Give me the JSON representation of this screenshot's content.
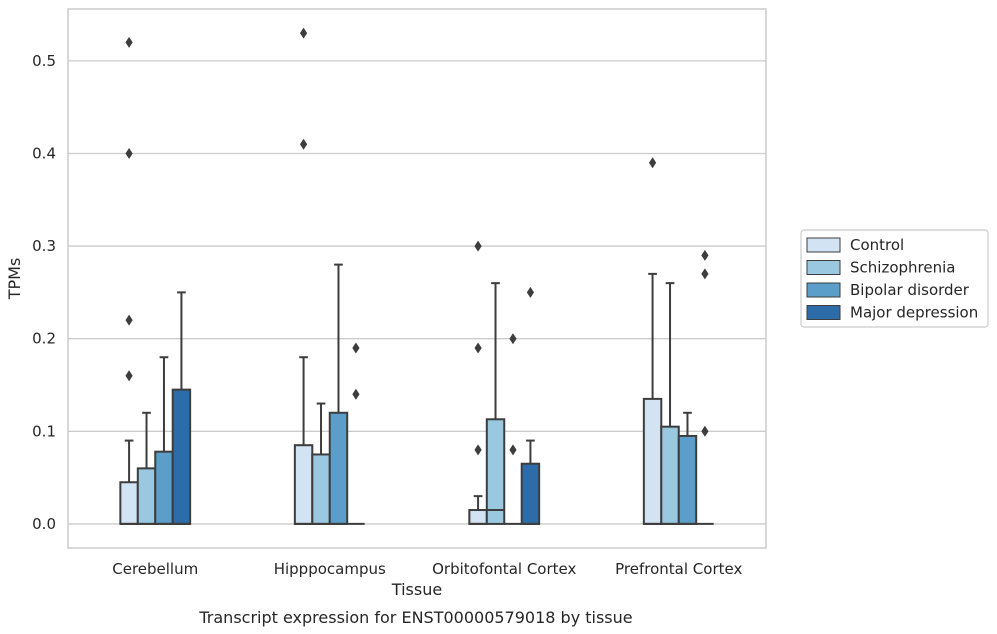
{
  "chart_data": {
    "type": "box",
    "caption": "Transcript expression for ENST00000579018 by tissue",
    "xlabel": "Tissue",
    "ylabel": "TPMs",
    "ylim": [
      -0.026,
      0.556
    ],
    "yticks": [
      0.0,
      0.1,
      0.2,
      0.3,
      0.4,
      0.5
    ],
    "ytick_labels": [
      "0.0",
      "0.1",
      "0.2",
      "0.3",
      "0.4",
      "0.5"
    ],
    "grid": true,
    "legend_position": "right",
    "categories": [
      "Cerebellum",
      "Hipppocampus",
      "Orbitofontal Cortex",
      "Prefrontal Cortex"
    ],
    "series": [
      {
        "name": "Control",
        "color": "#d2e3f3",
        "boxes": [
          {
            "q1": 0.0,
            "median": 0.0,
            "q3": 0.045,
            "whisker_low": 0.0,
            "whisker_high": 0.09,
            "outliers": [
              0.16,
              0.22,
              0.4,
              0.52
            ]
          },
          {
            "q1": 0.0,
            "median": 0.0,
            "q3": 0.085,
            "whisker_low": 0.0,
            "whisker_high": 0.18,
            "outliers": [
              0.41,
              0.53
            ]
          },
          {
            "q1": 0.0,
            "median": 0.0,
            "q3": 0.015,
            "whisker_low": 0.0,
            "whisker_high": 0.03,
            "outliers": [
              0.08,
              0.19,
              0.3
            ]
          },
          {
            "q1": 0.0,
            "median": 0.0,
            "q3": 0.135,
            "whisker_low": 0.0,
            "whisker_high": 0.27,
            "outliers": [
              0.39
            ]
          }
        ]
      },
      {
        "name": "Schizophrenia",
        "color": "#9ac8e0",
        "boxes": [
          {
            "q1": 0.0,
            "median": 0.0,
            "q3": 0.06,
            "whisker_low": 0.0,
            "whisker_high": 0.12,
            "outliers": []
          },
          {
            "q1": 0.0,
            "median": 0.0,
            "q3": 0.075,
            "whisker_low": 0.0,
            "whisker_high": 0.13,
            "outliers": []
          },
          {
            "q1": 0.0,
            "median": 0.015,
            "q3": 0.113,
            "whisker_low": 0.0,
            "whisker_high": 0.26,
            "outliers": []
          },
          {
            "q1": 0.0,
            "median": 0.0,
            "q3": 0.105,
            "whisker_low": 0.0,
            "whisker_high": 0.26,
            "outliers": []
          }
        ]
      },
      {
        "name": "Bipolar disorder",
        "color": "#5a9ec9",
        "boxes": [
          {
            "q1": 0.0,
            "median": 0.0,
            "q3": 0.078,
            "whisker_low": 0.0,
            "whisker_high": 0.18,
            "outliers": []
          },
          {
            "q1": 0.0,
            "median": 0.0,
            "q3": 0.12,
            "whisker_low": 0.0,
            "whisker_high": 0.28,
            "outliers": []
          },
          {
            "q1": 0.0,
            "median": 0.0,
            "q3": 0.0,
            "whisker_low": 0.0,
            "whisker_high": 0.0,
            "outliers": [
              0.08,
              0.2
            ]
          },
          {
            "q1": 0.0,
            "median": 0.0,
            "q3": 0.095,
            "whisker_low": 0.0,
            "whisker_high": 0.12,
            "outliers": []
          }
        ]
      },
      {
        "name": "Major depression",
        "color": "#2c6ca9",
        "boxes": [
          {
            "q1": 0.0,
            "median": 0.0,
            "q3": 0.145,
            "whisker_low": 0.0,
            "whisker_high": 0.25,
            "outliers": []
          },
          {
            "q1": 0.0,
            "median": 0.0,
            "q3": 0.0,
            "whisker_low": 0.0,
            "whisker_high": 0.0,
            "outliers": [
              0.14,
              0.19
            ]
          },
          {
            "q1": 0.0,
            "median": 0.0,
            "q3": 0.065,
            "whisker_low": 0.0,
            "whisker_high": 0.09,
            "outliers": [
              0.25
            ]
          },
          {
            "q1": 0.0,
            "median": 0.0,
            "q3": 0.0,
            "whisker_low": 0.0,
            "whisker_high": 0.0,
            "outliers": [
              0.1,
              0.27,
              0.29
            ]
          }
        ]
      }
    ]
  }
}
